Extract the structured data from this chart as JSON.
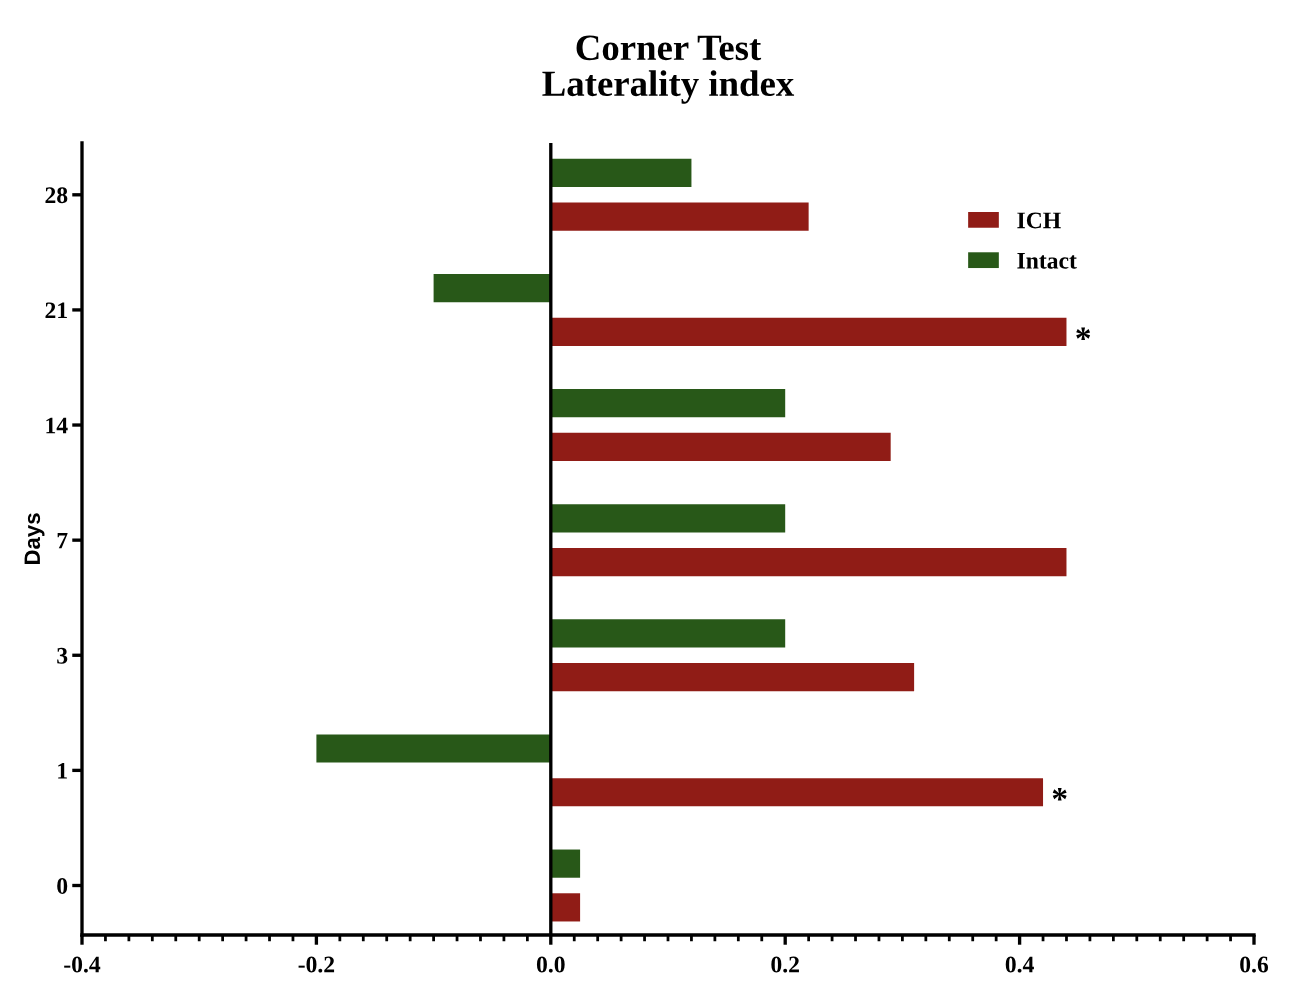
{
  "chart_data": {
    "type": "bar",
    "orientation": "horizontal",
    "title": "Corner Test\nLaterality index",
    "ylabel": "Days",
    "categories": [
      "28",
      "21",
      "14",
      "7",
      "3",
      "1",
      "0"
    ],
    "series": [
      {
        "name": "ICH",
        "color": "#901c16",
        "values": [
          0.22,
          0.44,
          0.29,
          0.44,
          0.31,
          0.42,
          0.025
        ],
        "value_labels": [
          null,
          "*",
          null,
          null,
          null,
          "*",
          null
        ]
      },
      {
        "name": "Intact",
        "color": "#285818",
        "values": [
          0.12,
          -0.1,
          0.2,
          0.2,
          0.2,
          -0.2,
          0.025
        ]
      }
    ],
    "xlim": [
      -0.4,
      0.6
    ],
    "xticks": [
      -0.4,
      {
        "value": -0.38,
        "label": null
      },
      {
        "value": -0.36,
        "label": null
      },
      {
        "value": -0.34,
        "label": null
      },
      {
        "value": -0.32,
        "label": null
      },
      {
        "value": -0.3,
        "label": null
      },
      {
        "value": -0.28,
        "label": null
      },
      {
        "value": -0.26,
        "label": null
      },
      {
        "value": -0.24,
        "label": null
      },
      {
        "value": -0.22,
        "label": null
      },
      -0.2,
      {
        "value": -0.18,
        "label": null
      },
      {
        "value": -0.16,
        "label": null
      },
      {
        "value": -0.14,
        "label": null
      },
      {
        "value": -0.12,
        "label": null
      },
      {
        "value": -0.1,
        "label": null
      },
      {
        "value": -0.08,
        "label": null
      },
      {
        "value": -0.06,
        "label": null
      },
      {
        "value": -0.04,
        "label": null
      },
      {
        "value": -0.02,
        "label": null
      },
      {
        "value": 0,
        "label": "0.0"
      },
      {
        "value": 0.02,
        "label": null
      },
      {
        "value": 0.04,
        "label": null
      },
      {
        "value": 0.06,
        "label": null
      },
      {
        "value": 0.08,
        "label": null
      },
      {
        "value": 0.1,
        "label": null
      },
      {
        "value": 0.12,
        "label": null
      },
      {
        "value": 0.14,
        "label": null
      },
      {
        "value": 0.16,
        "label": null
      },
      {
        "value": 0.18,
        "label": null
      },
      0.2,
      {
        "value": 0.22,
        "label": null
      },
      {
        "value": 0.24,
        "label": null
      },
      {
        "value": 0.26,
        "label": null
      },
      {
        "value": 0.28,
        "label": null
      },
      {
        "value": 0.3,
        "label": null
      },
      {
        "value": 0.32,
        "label": null
      },
      {
        "value": 0.34,
        "label": null
      },
      {
        "value": 0.36,
        "label": null
      },
      {
        "value": 0.38,
        "label": null
      },
      0.4,
      {
        "value": 0.42,
        "label": null
      },
      {
        "value": 0.44,
        "label": null
      },
      {
        "value": 0.46,
        "label": null
      },
      {
        "value": 0.48,
        "label": null
      },
      {
        "value": 0.5,
        "label": null
      },
      {
        "value": 0.52,
        "label": null
      },
      {
        "value": 0.54,
        "label": null
      },
      {
        "value": 0.56,
        "label": null
      },
      {
        "value": 0.58,
        "label": null
      },
      0.6
    ],
    "ref_lines": [
      {
        "axis": "x",
        "value": 0,
        "color": "#000000"
      }
    ],
    "legend": "top right"
  }
}
